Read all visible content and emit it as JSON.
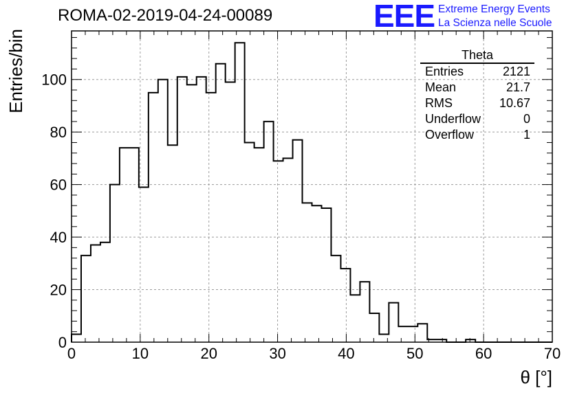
{
  "header": {
    "run_title": "ROMA-02-2019-04-24-00089"
  },
  "logo": {
    "letters": "EEE",
    "line1": "Extreme Energy Events",
    "line2": "La Scienza nelle Scuole",
    "color": "#1a1aff"
  },
  "stats": {
    "title": "Theta",
    "rows": [
      {
        "label": "Entries",
        "value": "2121"
      },
      {
        "label": "Mean",
        "value": "21.7"
      },
      {
        "label": "RMS",
        "value": "10.67"
      },
      {
        "label": "Underflow",
        "value": "0"
      },
      {
        "label": "Overflow",
        "value": "1"
      }
    ]
  },
  "chart_data": {
    "type": "bar",
    "xlabel": "θ [°]",
    "ylabel": "Entries/bin",
    "xlim": [
      0,
      70
    ],
    "ylim": [
      0,
      118.5
    ],
    "grid": true,
    "x_ticks": [
      0,
      10,
      20,
      30,
      40,
      50,
      60,
      70
    ],
    "y_ticks": [
      0,
      20,
      40,
      60,
      80,
      100
    ],
    "bin_width": 1.4,
    "bin_start": 0,
    "values": [
      3,
      33,
      37,
      38,
      60,
      74,
      74,
      59,
      95,
      100,
      75,
      101,
      98,
      101,
      95,
      106,
      99,
      114,
      76,
      74,
      84,
      69,
      70,
      77,
      53,
      52,
      51,
      33,
      28,
      18,
      23,
      11,
      3,
      15,
      6,
      6,
      7,
      1,
      1,
      0,
      0,
      1,
      0,
      0,
      0,
      0,
      0,
      0,
      0,
      0
    ]
  }
}
